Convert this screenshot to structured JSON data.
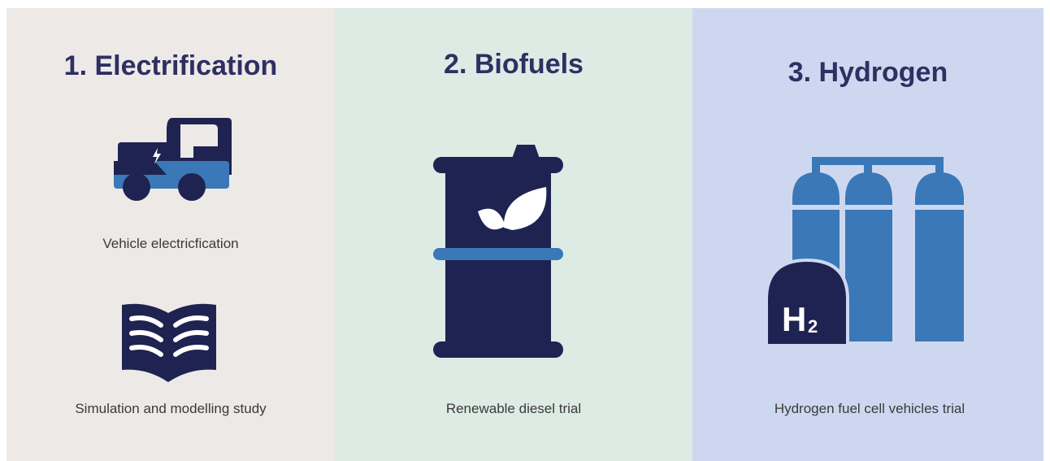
{
  "panels": [
    {
      "title": "1. Electrification",
      "items": [
        "Vehicle electricfication",
        "Simulation and modelling study"
      ]
    },
    {
      "title": "2. Biofuels",
      "items": [
        "Renewable diesel trial"
      ]
    },
    {
      "title": "3. Hydrogen",
      "items": [
        "Hydrogen fuel cell vehicles trial"
      ],
      "icon_text": "H",
      "icon_subscript": "2"
    }
  ]
}
